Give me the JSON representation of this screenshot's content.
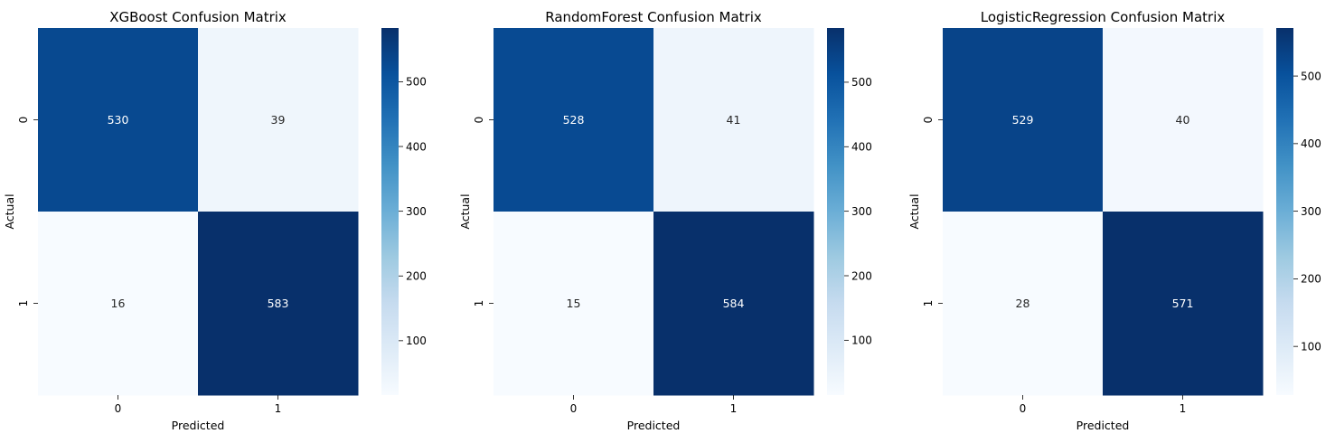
{
  "chart_data": [
    {
      "type": "heatmap",
      "title": "XGBoost Confusion Matrix",
      "xlabel": "Predicted",
      "ylabel": "Actual",
      "x_ticks": [
        "0",
        "1"
      ],
      "y_ticks": [
        "0",
        "1"
      ],
      "matrix": [
        [
          530,
          39
        ],
        [
          16,
          583
        ]
      ],
      "cell_labels": [
        [
          "530",
          "39"
        ],
        [
          "16",
          "583"
        ]
      ],
      "colormap": "Blues",
      "colorbar": {
        "range": [
          16,
          583
        ],
        "ticks": [
          100,
          200,
          300,
          400,
          500
        ],
        "tick_labels": [
          "100",
          "200",
          "300",
          "400",
          "500"
        ]
      }
    },
    {
      "type": "heatmap",
      "title": "RandomForest Confusion Matrix",
      "xlabel": "Predicted",
      "ylabel": "Actual",
      "x_ticks": [
        "0",
        "1"
      ],
      "y_ticks": [
        "0",
        "1"
      ],
      "matrix": [
        [
          528,
          41
        ],
        [
          15,
          584
        ]
      ],
      "cell_labels": [
        [
          "528",
          "41"
        ],
        [
          "15",
          "584"
        ]
      ],
      "colormap": "Blues",
      "colorbar": {
        "range": [
          15,
          584
        ],
        "ticks": [
          100,
          200,
          300,
          400,
          500
        ],
        "tick_labels": [
          "100",
          "200",
          "300",
          "400",
          "500"
        ]
      }
    },
    {
      "type": "heatmap",
      "title": "LogisticRegression Confusion Matrix",
      "xlabel": "Predicted",
      "ylabel": "Actual",
      "x_ticks": [
        "0",
        "1"
      ],
      "y_ticks": [
        "0",
        "1"
      ],
      "matrix": [
        [
          529,
          40
        ],
        [
          28,
          571
        ]
      ],
      "cell_labels": [
        [
          "529",
          "40"
        ],
        [
          "28",
          "571"
        ]
      ],
      "colormap": "Blues",
      "colorbar": {
        "range": [
          28,
          571
        ],
        "ticks": [
          100,
          200,
          300,
          400,
          500
        ],
        "tick_labels": [
          "100",
          "200",
          "300",
          "400",
          "500"
        ]
      }
    }
  ]
}
